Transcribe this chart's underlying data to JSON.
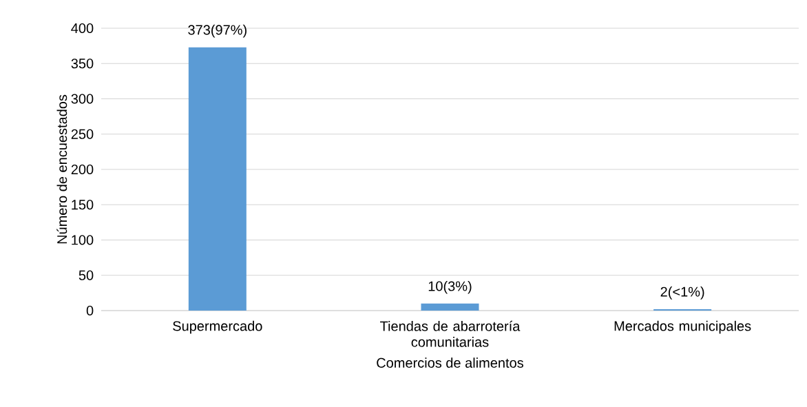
{
  "chart_data": {
    "type": "bar",
    "xlabel": "Comercios de alimentos",
    "ylabel": "Número de encuestados",
    "categories": [
      "Supermercado",
      "Tiendas de abarrotería comunitarias",
      "Mercados municipales"
    ],
    "values": [
      373,
      10,
      2
    ],
    "value_labels": [
      "373(97%)",
      "10(3%)",
      "2(<1%)"
    ],
    "color": "#5b9bd5",
    "ylim": [
      0,
      400
    ],
    "yticks": [
      0,
      50,
      100,
      150,
      200,
      250,
      300,
      350,
      400
    ],
    "grid": "y"
  }
}
